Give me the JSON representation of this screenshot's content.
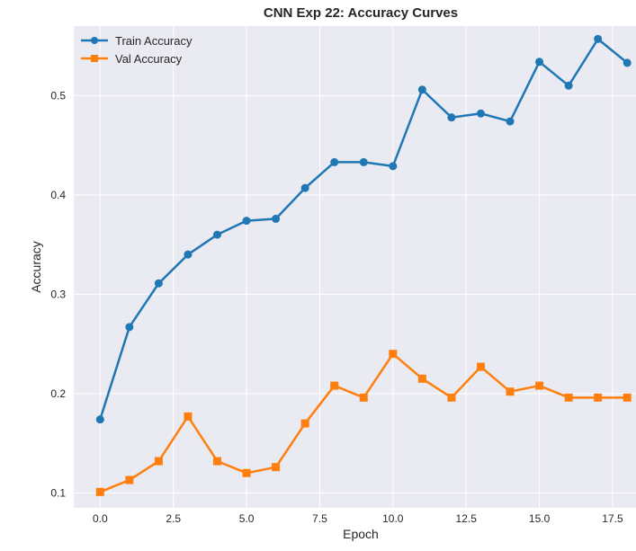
{
  "chart_data": {
    "type": "line",
    "title": "CNN Exp 22: Accuracy Curves",
    "xlabel": "Epoch",
    "ylabel": "Accuracy",
    "x": [
      0,
      1,
      2,
      3,
      4,
      5,
      6,
      7,
      8,
      9,
      10,
      11,
      12,
      13,
      14,
      15,
      16,
      17,
      18
    ],
    "xlim": [
      -0.9,
      18.3
    ],
    "ylim": [
      0.085,
      0.57
    ],
    "x_ticks": [
      0.0,
      2.5,
      5.0,
      7.5,
      10.0,
      12.5,
      15.0,
      17.5
    ],
    "x_tick_labels": [
      "0.0",
      "2.5",
      "5.0",
      "7.5",
      "10.0",
      "12.5",
      "15.0",
      "17.5"
    ],
    "y_ticks": [
      0.1,
      0.2,
      0.3,
      0.4,
      0.5
    ],
    "y_tick_labels": [
      "0.1",
      "0.2",
      "0.3",
      "0.4",
      "0.5"
    ],
    "grid": true,
    "legend_position": "top-left",
    "background": "#eaeaf2",
    "series": [
      {
        "name": "Train Accuracy",
        "color": "#1f77b4",
        "marker": "circle",
        "values": [
          0.174,
          0.267,
          0.311,
          0.34,
          0.36,
          0.374,
          0.376,
          0.407,
          0.433,
          0.433,
          0.429,
          0.506,
          0.478,
          0.482,
          0.474,
          0.534,
          0.51,
          0.557,
          0.533
        ]
      },
      {
        "name": "Val Accuracy",
        "color": "#ff7f0e",
        "marker": "square",
        "values": [
          0.101,
          0.113,
          0.132,
          0.177,
          0.132,
          0.12,
          0.126,
          0.17,
          0.208,
          0.196,
          0.24,
          0.215,
          0.196,
          0.227,
          0.202,
          0.208,
          0.196,
          0.196,
          0.196
        ]
      }
    ]
  }
}
